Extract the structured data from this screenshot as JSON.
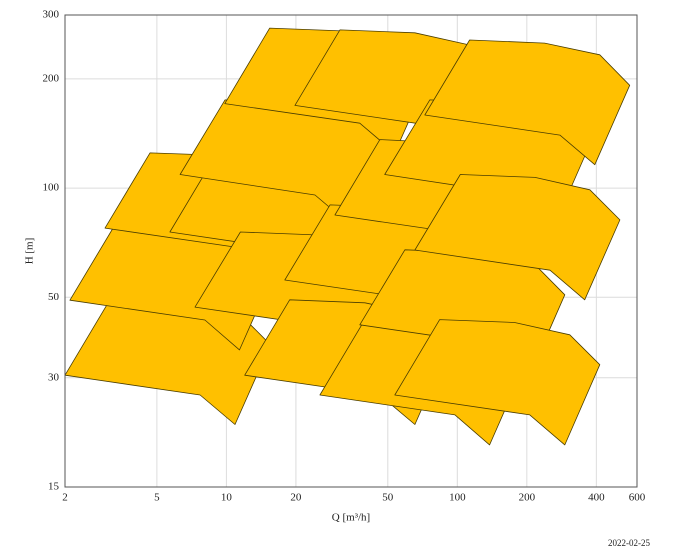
{
  "chart_data": {
    "type": "polygon",
    "xlabel": "Q [m³/h]",
    "ylabel": "H [m]",
    "annotation": "2022-02-25",
    "xscale": "log",
    "yscale": "log",
    "grid": true,
    "color": "#ffc000",
    "xlim": [
      2,
      600
    ],
    "ylim": [
      15,
      300
    ],
    "xticks": [
      2,
      5,
      10,
      20,
      50,
      100,
      200,
      400,
      600
    ],
    "yticks": [
      15,
      30,
      50,
      100,
      200,
      300
    ],
    "series": [
      {
        "x": [
          3.13,
          6.62,
          11.5,
          15.5,
          10.9,
          7.69,
          2.0
        ],
        "y": [
          49.2,
          48.3,
          44.8,
          37.0,
          22.3,
          26.9,
          30.5
        ]
      },
      {
        "x": [
          3.29,
          6.95,
          12.0,
          16.2,
          11.4,
          8.07,
          2.1
        ],
        "y": [
          79.1,
          77.6,
          71.9,
          59.4,
          35.8,
          43.3,
          49.1
        ]
      },
      {
        "x": [
          4.67,
          9.86,
          17.1,
          23.0,
          16.2,
          11.5,
          2.98
        ],
        "y": [
          125,
          123,
          114,
          94.0,
          56.6,
          68.4,
          77.6
        ]
      },
      {
        "x": [
          8.91,
          18.8,
          32.6,
          44.0,
          31.0,
          21.9,
          5.69
        ],
        "y": [
          122,
          120,
          111,
          91.6,
          55.2,
          66.7,
          75.7
        ]
      },
      {
        "x": [
          9.86,
          20.8,
          36.1,
          48.6,
          34.3,
          24.2,
          6.3
        ],
        "y": [
          175,
          172,
          159,
          132,
          79.3,
          95.7,
          109
        ]
      },
      {
        "x": [
          15.4,
          32.6,
          56.4,
          76.0,
          53.6,
          37.8,
          9.84
        ],
        "y": [
          276,
          271,
          251,
          207,
          125,
          151,
          171
        ]
      },
      {
        "x": [
          11.5,
          24.2,
          41.9,
          56.5,
          39.8,
          28.1,
          7.31
        ],
        "y": [
          75.7,
          74.3,
          68.9,
          56.9,
          34.3,
          41.4,
          47.0
        ]
      },
      {
        "x": [
          18.8,
          39.8,
          68.9,
          92.9,
          65.5,
          46.2,
          12.0
        ],
        "y": [
          49.2,
          48.3,
          44.8,
          37.0,
          22.3,
          26.9,
          30.5
        ]
      },
      {
        "x": [
          28.1,
          59.3,
          103,
          138,
          97.5,
          68.9,
          17.9
        ],
        "y": [
          89.9,
          88.3,
          81.8,
          67.6,
          40.7,
          49.2,
          55.8
        ]
      },
      {
        "x": [
          39.8,
          84.1,
          146,
          196,
          138,
          97.7,
          25.4
        ],
        "y": [
          43.4,
          42.6,
          39.4,
          32.6,
          19.6,
          23.7,
          26.9
        ]
      },
      {
        "x": [
          46.2,
          97.7,
          169,
          228,
          161,
          114,
          29.5
        ],
        "y": [
          136,
          133,
          124,
          102,
          61.5,
          74.3,
          84.3
        ]
      },
      {
        "x": [
          31.0,
          65.5,
          113,
          153,
          108,
          76.0,
          19.8
        ],
        "y": [
          273,
          268,
          248,
          205,
          124,
          149,
          169
        ]
      },
      {
        "x": [
          76.0,
          161,
          278,
          375,
          264,
          187,
          48.5
        ],
        "y": [
          175,
          172,
          159,
          132,
          79.3,
          95.7,
          109
        ]
      },
      {
        "x": [
          59.3,
          125,
          217,
          292,
          206,
          146,
          37.8
        ],
        "y": [
          67.6,
          66.4,
          61.5,
          50.8,
          30.6,
          37.0,
          42.0
        ]
      },
      {
        "x": [
          103,
          217,
          375,
          506,
          356,
          252,
          65.5
        ],
        "y": [
          109,
          107,
          98.9,
          81.7,
          49.2,
          59.4,
          67.5
        ]
      },
      {
        "x": [
          83.9,
          177,
          307,
          414,
          292,
          206,
          53.6
        ],
        "y": [
          43.4,
          42.6,
          39.4,
          32.6,
          19.6,
          23.7,
          26.9
        ]
      },
      {
        "x": [
          113,
          239,
          414,
          558,
          394,
          278,
          72.3
        ],
        "y": [
          256,
          251,
          233,
          192,
          116,
          140,
          159
        ]
      }
    ]
  }
}
